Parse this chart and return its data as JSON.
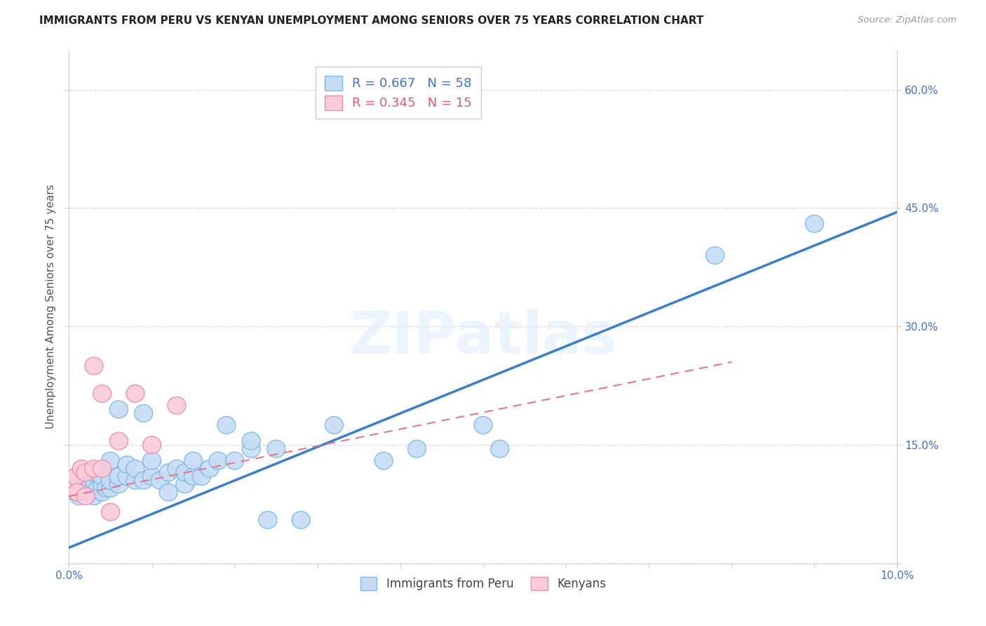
{
  "title": "IMMIGRANTS FROM PERU VS KENYAN UNEMPLOYMENT AMONG SENIORS OVER 75 YEARS CORRELATION CHART",
  "source": "Source: ZipAtlas.com",
  "ylabel": "Unemployment Among Seniors over 75 years",
  "xlim": [
    0.0,
    0.1
  ],
  "ylim": [
    0.0,
    0.65
  ],
  "xticks": [
    0.0,
    0.01,
    0.02,
    0.03,
    0.04,
    0.05,
    0.06,
    0.07,
    0.08,
    0.09,
    0.1
  ],
  "xtick_labels": [
    "0.0%",
    "",
    "",
    "",
    "",
    "",
    "",
    "",
    "",
    "",
    "10.0%"
  ],
  "yticks": [
    0.0,
    0.15,
    0.3,
    0.45,
    0.6
  ],
  "ytick_labels_right": [
    "",
    "15.0%",
    "30.0%",
    "45.0%",
    "60.0%"
  ],
  "legend_r1": "R = 0.667",
  "legend_n1": "N = 58",
  "legend_r2": "R = 0.345",
  "legend_n2": "N = 15",
  "blue_edge": "#7ab8e8",
  "blue_fill": "#c6dcf5",
  "pink_edge": "#f08aaa",
  "pink_fill": "#f9ccd9",
  "line_blue": "#3a7dc9",
  "line_pink": "#e8758a",
  "scatter_blue_x": [
    0.0008,
    0.001,
    0.0012,
    0.0015,
    0.0018,
    0.002,
    0.002,
    0.002,
    0.0022,
    0.0025,
    0.003,
    0.003,
    0.003,
    0.003,
    0.0035,
    0.004,
    0.004,
    0.004,
    0.0045,
    0.005,
    0.005,
    0.005,
    0.006,
    0.006,
    0.006,
    0.007,
    0.007,
    0.008,
    0.008,
    0.009,
    0.009,
    0.01,
    0.01,
    0.011,
    0.012,
    0.012,
    0.013,
    0.014,
    0.014,
    0.015,
    0.015,
    0.016,
    0.017,
    0.018,
    0.019,
    0.02,
    0.022,
    0.022,
    0.024,
    0.025,
    0.028,
    0.032,
    0.038,
    0.042,
    0.05,
    0.052,
    0.078,
    0.09
  ],
  "scatter_blue_y": [
    0.09,
    0.095,
    0.085,
    0.1,
    0.095,
    0.1,
    0.105,
    0.11,
    0.09,
    0.1,
    0.085,
    0.095,
    0.105,
    0.115,
    0.095,
    0.09,
    0.1,
    0.11,
    0.095,
    0.095,
    0.105,
    0.13,
    0.1,
    0.11,
    0.195,
    0.11,
    0.125,
    0.105,
    0.12,
    0.105,
    0.19,
    0.11,
    0.13,
    0.105,
    0.09,
    0.115,
    0.12,
    0.1,
    0.115,
    0.11,
    0.13,
    0.11,
    0.12,
    0.13,
    0.175,
    0.13,
    0.145,
    0.155,
    0.055,
    0.145,
    0.055,
    0.175,
    0.13,
    0.145,
    0.175,
    0.145,
    0.39,
    0.43
  ],
  "scatter_pink_x": [
    0.0006,
    0.0008,
    0.001,
    0.0015,
    0.002,
    0.002,
    0.003,
    0.003,
    0.004,
    0.004,
    0.005,
    0.006,
    0.008,
    0.01,
    0.013
  ],
  "scatter_pink_y": [
    0.095,
    0.11,
    0.09,
    0.12,
    0.085,
    0.115,
    0.12,
    0.25,
    0.12,
    0.215,
    0.065,
    0.155,
    0.215,
    0.15,
    0.2
  ],
  "blue_line_x": [
    0.0,
    0.1
  ],
  "blue_line_y": [
    0.02,
    0.445
  ],
  "pink_line_x": [
    0.0,
    0.08
  ],
  "pink_line_y": [
    0.085,
    0.255
  ],
  "watermark": "ZIPatlas",
  "background_color": "#ffffff",
  "grid_color": "#d8d8d8",
  "axis_color": "#cccccc",
  "tick_label_color": "#4472c4",
  "ylabel_color": "#555555",
  "title_color": "#222222"
}
